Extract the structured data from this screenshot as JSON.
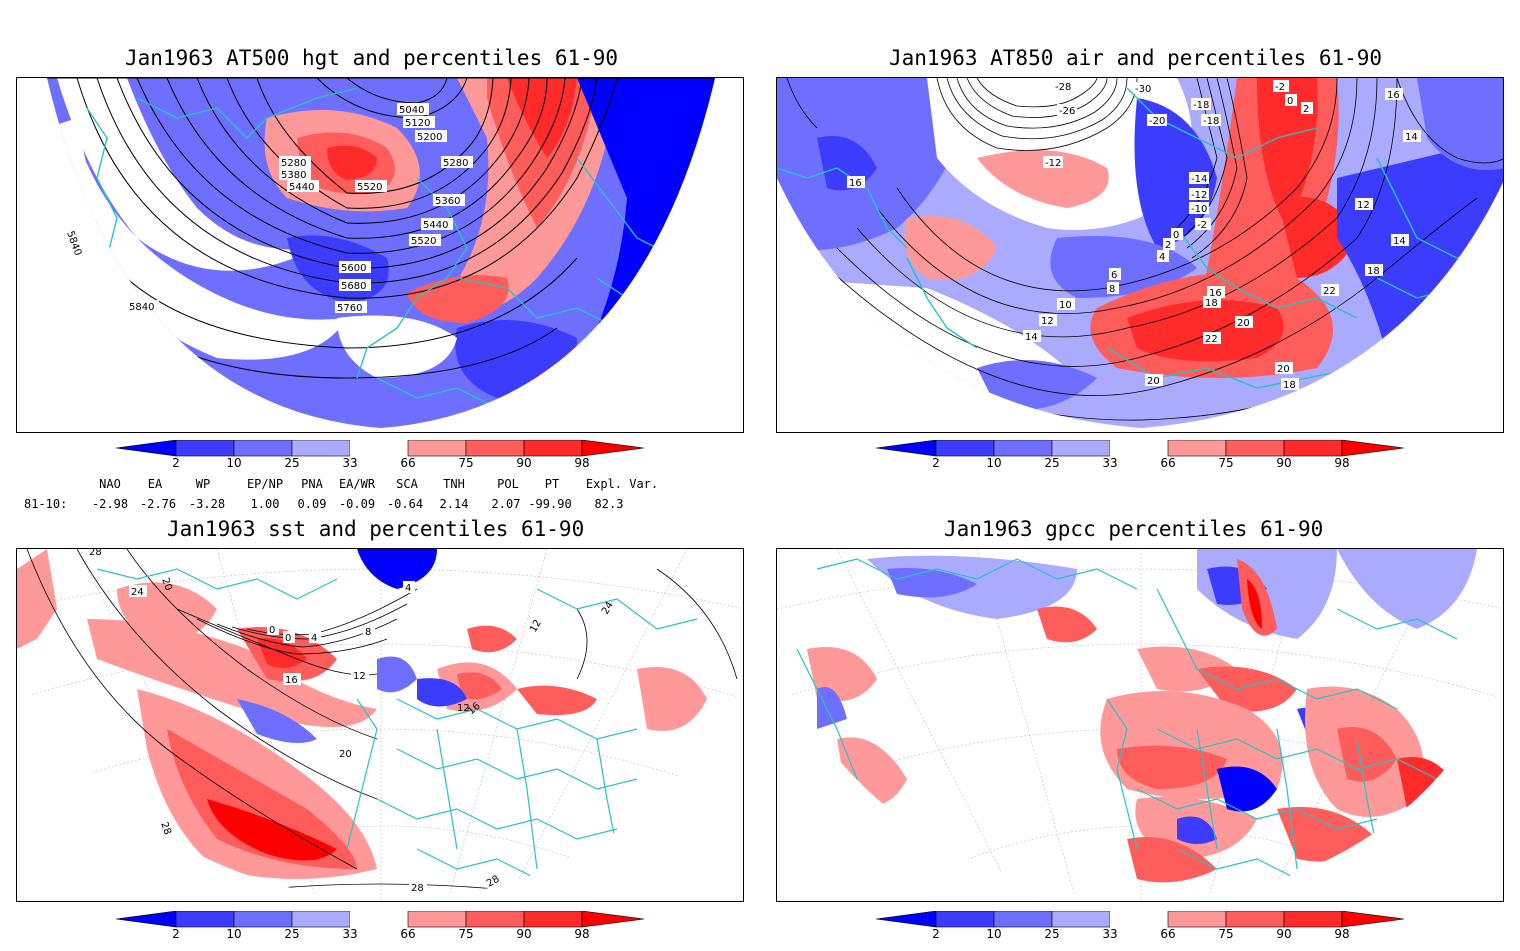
{
  "panels": [
    {
      "title": "Jan1963 AT500 hgt and percentiles 61-90",
      "labels": [
        "5040",
        "5120",
        "5200",
        "5280",
        "5380",
        "5440",
        "5520",
        "5280",
        "5360",
        "5440",
        "5520",
        "5600",
        "5680",
        "5760",
        "5840",
        "5840"
      ]
    },
    {
      "title": "Jan1963 AT850 air and percentiles 61-90",
      "labels": [
        "-28",
        "-30",
        "-26",
        "-20",
        "-18",
        "-18",
        "-2",
        "0",
        "2",
        "16",
        "14",
        "16",
        "-12",
        "-14",
        "-12",
        "-10",
        "-2",
        "0",
        "2",
        "4",
        "6",
        "8",
        "10",
        "12",
        "14",
        "12",
        "14",
        "18",
        "16",
        "18",
        "20",
        "22",
        "22",
        "20",
        "20",
        "18"
      ]
    },
    {
      "title": "Jan1963 sst and percentiles 61-90",
      "labels": [
        "28",
        "24",
        "20",
        "0",
        "0",
        "4",
        "8",
        "4",
        "12",
        "16",
        "12",
        "16",
        "20",
        "28",
        "28",
        "28",
        "24",
        "12"
      ]
    },
    {
      "title": "Jan1963 gpcc percentiles 61-90",
      "labels": []
    }
  ],
  "colorbar": {
    "ticks": [
      "2",
      "10",
      "25",
      "33",
      "66",
      "75",
      "90",
      "98"
    ],
    "colors": {
      "below_2": "#0000ff",
      "c2_10": "#3c3cff",
      "c10_25": "#6e6eff",
      "c25_33": "#aaaaff",
      "c33_66": "#ffffff",
      "c66_75": "#ff9999",
      "c75_90": "#ff5c5c",
      "c90_98": "#ff2b2b",
      "above_98": "#ff0000"
    }
  },
  "indices": {
    "headers": [
      "NAO",
      "EA",
      "WP",
      "EP/NP",
      "PNA",
      "EA/WR",
      "SCA",
      "TNH",
      "POL",
      "PT",
      "Expl. Var."
    ],
    "row_label": "81-10:",
    "values": [
      "-2.98",
      "-2.76",
      "-3.28",
      "1.00",
      "0.09",
      "-0.09",
      "-0.64",
      "2.14",
      "2.07",
      "-99.90",
      "82.3"
    ]
  },
  "map_colors": {
    "coast": "#27c2c2",
    "contour": "#000000",
    "graticule": "#9a9a9a"
  }
}
